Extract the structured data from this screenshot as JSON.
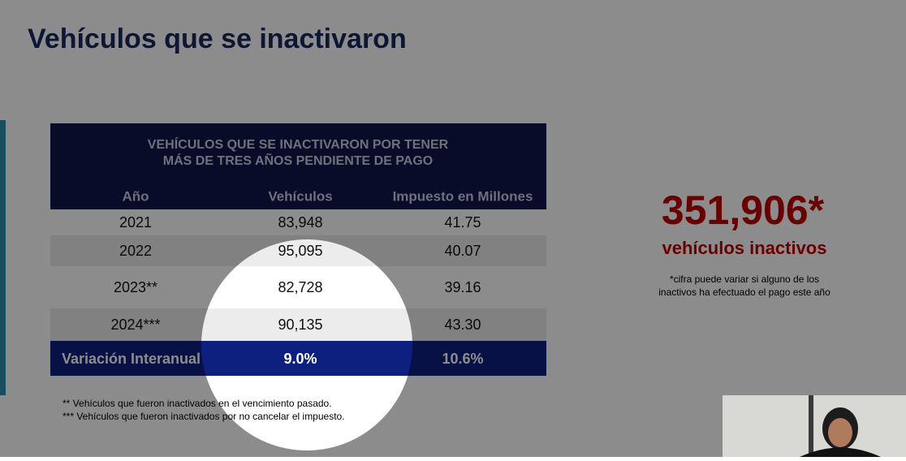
{
  "slide": {
    "title": "Vehículos que se inactivaron",
    "table": {
      "heading": [
        "VEHÍCULOS QUE SE INACTIVARON POR TENER",
        "MÁS DE TRES AÑOS PENDIENTE DE PAGO"
      ],
      "columns": [
        "Año",
        "Vehículos",
        "Impuesto en Millones"
      ],
      "rows": [
        [
          "2021",
          "83,948",
          "41.75"
        ],
        [
          "2022",
          "95,095",
          "40.07"
        ],
        [
          "2023**",
          "82,728",
          "39.16"
        ],
        [
          "2024***",
          "90,135",
          "43.30"
        ]
      ],
      "total": [
        "Variación Interanual",
        "9.0%",
        "10.6%"
      ]
    },
    "footnotes": [
      "** Vehículos que fueron inactivados en el vencimiento pasado.",
      "*** Vehículos que fueron inactivados por no cancelar el impuesto."
    ],
    "highlight": {
      "number": "351,906*",
      "label": "vehículos inactivos",
      "note": [
        "*cifra puede variar si alguno de los",
        "inactivos ha efectuado el pago este año"
      ]
    }
  }
}
